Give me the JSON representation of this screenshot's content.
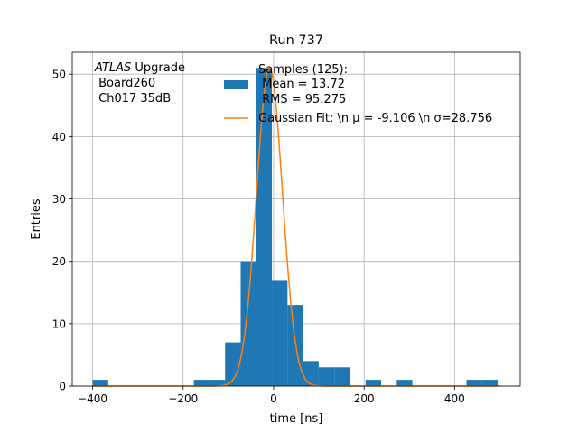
{
  "chart_data": {
    "type": "bar",
    "title": "Run 737",
    "xlabel": "time [ns]",
    "ylabel": "Entries",
    "xlim": [
      -445,
      545
    ],
    "ylim": [
      0,
      53.5
    ],
    "xticks": [
      -400,
      -200,
      0,
      200,
      400
    ],
    "yticks": [
      0,
      10,
      20,
      30,
      40,
      50
    ],
    "grid": true,
    "bin_width": 34.5,
    "bins": [
      {
        "left": -400,
        "value": 1
      },
      {
        "left": -176.2,
        "value": 1
      },
      {
        "left": -141.8,
        "value": 1
      },
      {
        "left": -107.3,
        "value": 7
      },
      {
        "left": -72.8,
        "value": 20
      },
      {
        "left": -38.3,
        "value": 51
      },
      {
        "left": -3.8,
        "value": 17
      },
      {
        "left": 30.7,
        "value": 13
      },
      {
        "left": 65.2,
        "value": 4
      },
      {
        "left": 99.7,
        "value": 3
      },
      {
        "left": 134.2,
        "value": 3
      },
      {
        "left": 203.2,
        "value": 1
      },
      {
        "left": 272.2,
        "value": 1
      },
      {
        "left": 426.3,
        "value": 1
      },
      {
        "left": 460.8,
        "value": 1
      }
    ],
    "fit": {
      "mu": -9.106,
      "sigma": 28.756,
      "amplitude": 51,
      "color": "#ff7f0e"
    },
    "bar_color": "#1f77b4",
    "annotation": {
      "italic": "ATLAS",
      "line1": " Upgrade",
      "line2": " Board260",
      "line3": " Ch017 35dB"
    },
    "legend": {
      "placement": "top-center",
      "entries": [
        {
          "kind": "patch",
          "lines": [
            "Samples (125):",
            " Mean = 13.72",
            " RMS = 95.275"
          ]
        },
        {
          "kind": "line",
          "text": "Gaussian Fit: \\n μ = -9.106 \\n σ=28.756"
        }
      ]
    }
  }
}
